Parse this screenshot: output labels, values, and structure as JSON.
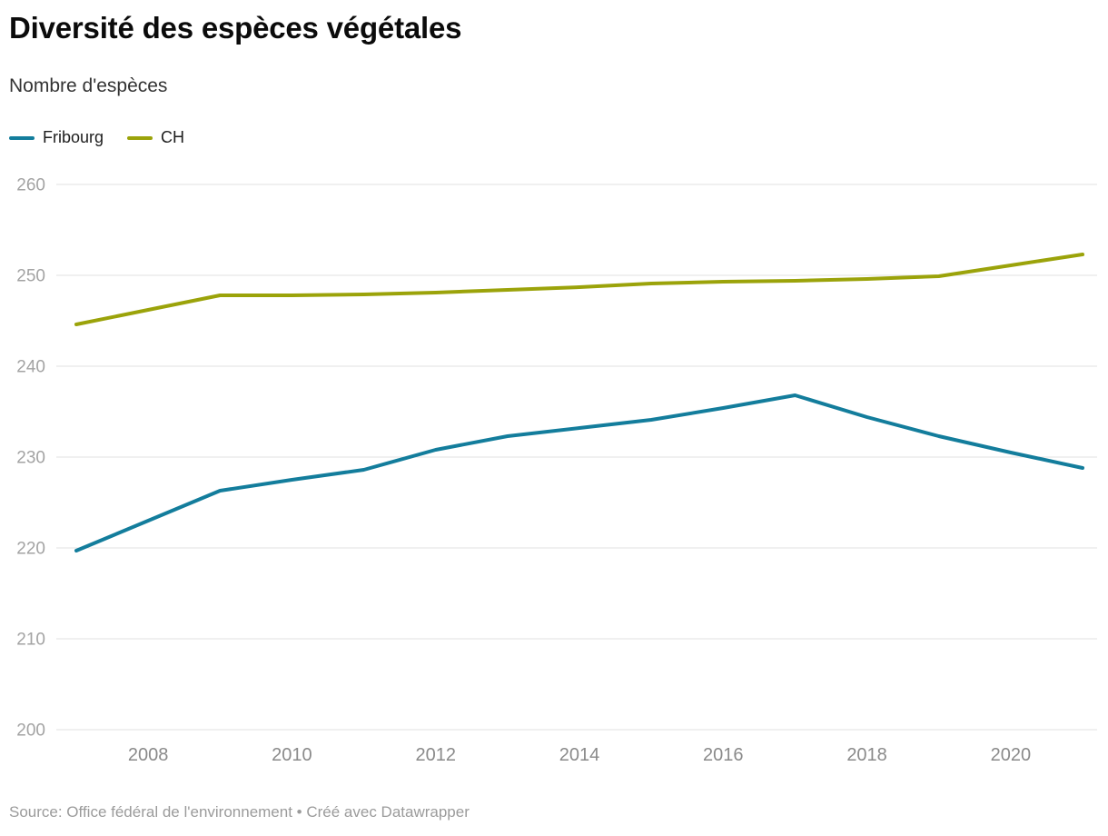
{
  "header": {
    "title": "Diversité des espèces végétales",
    "subtitle": "Nombre d'espèces"
  },
  "legend": {
    "items": [
      {
        "label": "Fribourg",
        "color": "#137d9c"
      },
      {
        "label": "CH",
        "color": "#9ba30a"
      }
    ]
  },
  "footer": {
    "source": "Source: Office fédéral de l'environnement • Créé avec Datawrapper"
  },
  "chart_data": {
    "type": "line",
    "title": "Diversité des espèces végétales",
    "ylabel": "Nombre d'espèces",
    "xlabel": "",
    "x": [
      2007,
      2008,
      2009,
      2010,
      2011,
      2012,
      2013,
      2014,
      2015,
      2016,
      2017,
      2018,
      2019,
      2020,
      2021
    ],
    "series": [
      {
        "name": "Fribourg",
        "color": "#137d9c",
        "values": [
          219.7,
          223.0,
          226.3,
          227.5,
          228.6,
          230.8,
          232.3,
          233.2,
          234.1,
          235.4,
          236.8,
          234.4,
          232.3,
          230.5,
          228.8
        ]
      },
      {
        "name": "CH",
        "color": "#9ba30a",
        "values": [
          244.6,
          246.2,
          247.8,
          247.8,
          247.9,
          248.1,
          248.4,
          248.7,
          249.1,
          249.3,
          249.4,
          249.6,
          249.9,
          251.1,
          252.3
        ]
      }
    ],
    "ylim": [
      200,
      260
    ],
    "yticks": [
      200,
      210,
      220,
      230,
      240,
      250,
      260
    ],
    "xticks": [
      2008,
      2010,
      2012,
      2014,
      2016,
      2018,
      2020
    ],
    "grid": "horizontal",
    "legend_position": "top-left"
  }
}
